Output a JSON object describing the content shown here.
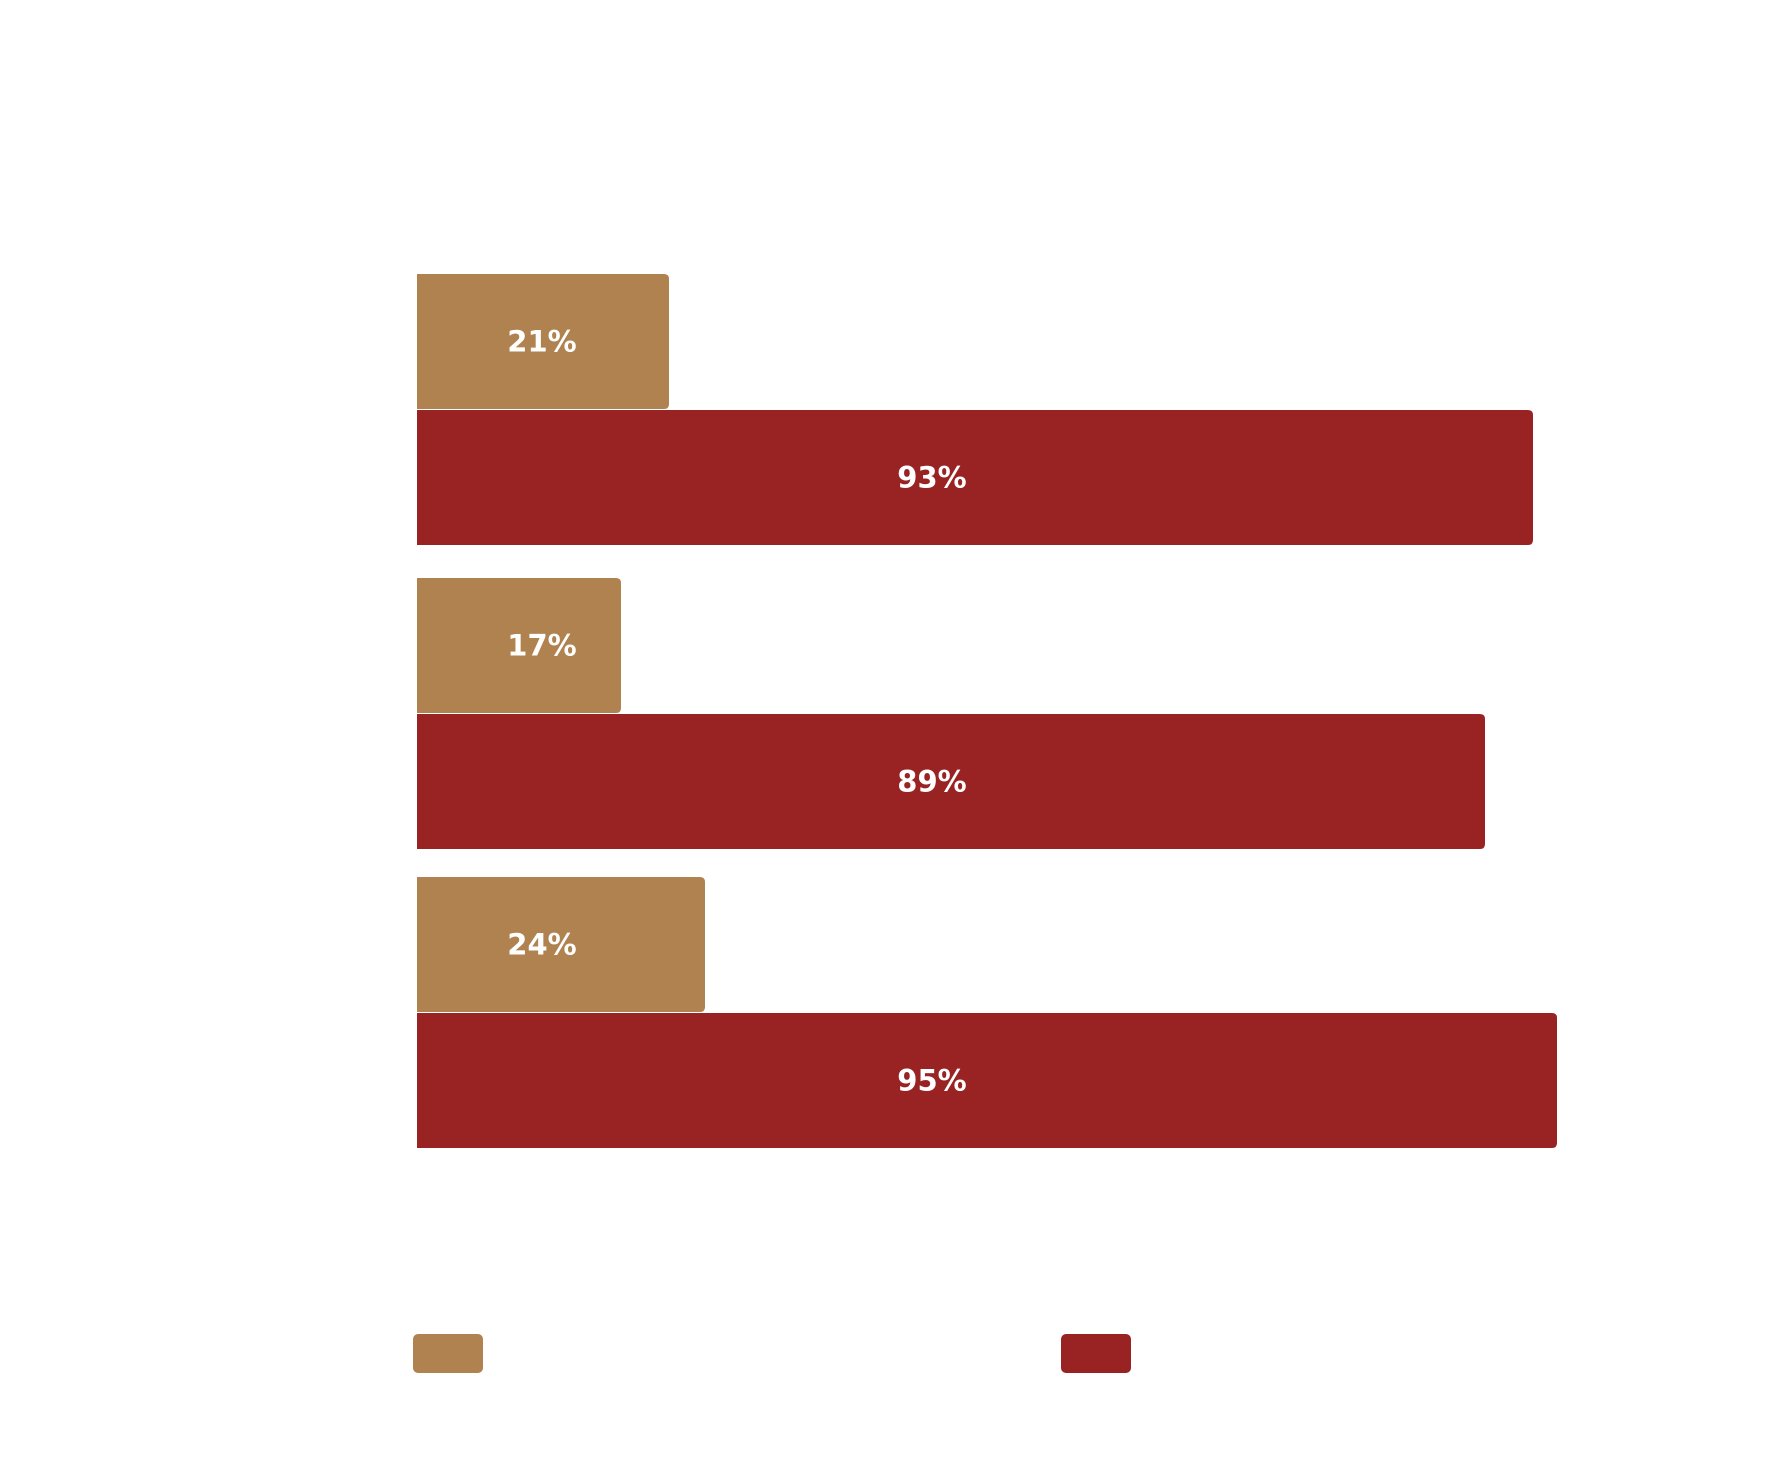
{
  "chart_data": {
    "type": "barh",
    "categories": [
      null,
      null,
      null
    ],
    "series": [
      {
        "color": "#b0824f",
        "values": [
          21,
          17,
          24
        ],
        "value_labels": [
          "21%",
          "17%",
          "24%"
        ]
      },
      {
        "color": "#992323",
        "values": [
          93,
          89,
          95
        ],
        "value_labels": [
          "93%",
          "89%",
          "95%"
        ]
      }
    ],
    "xlim": [
      0,
      100
    ]
  }
}
